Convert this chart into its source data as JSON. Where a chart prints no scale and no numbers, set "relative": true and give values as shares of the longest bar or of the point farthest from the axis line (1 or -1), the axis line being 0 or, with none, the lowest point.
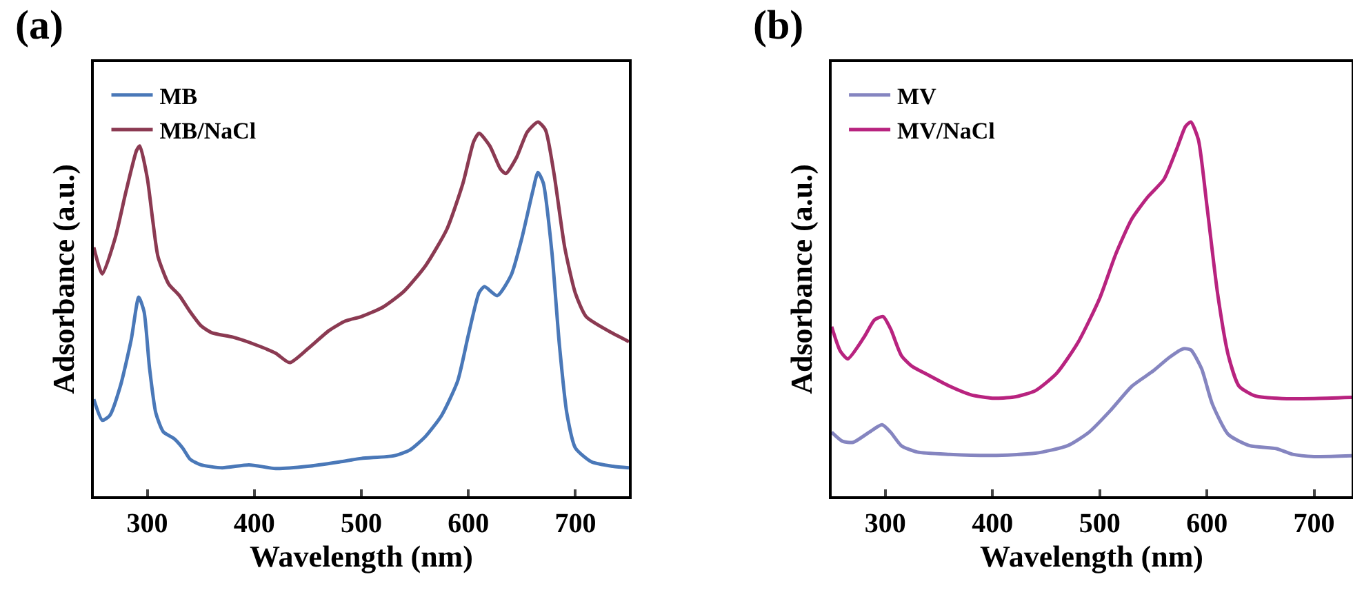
{
  "chart_data": [
    {
      "type": "line",
      "title": "(a)",
      "xlabel": "Wavelength (nm)",
      "ylabel": "Adsorbance (a.u.)",
      "relative": true,
      "xlim": [
        250,
        750
      ],
      "xticks": [
        300,
        400,
        500,
        600,
        700
      ],
      "legend": "top left",
      "line_style": "solid",
      "series": [
        {
          "name": "MB",
          "color": "#4a78b8",
          "x": [
            250,
            258,
            265,
            275,
            285,
            292,
            297,
            302,
            308,
            315,
            325,
            333,
            340,
            350,
            370,
            395,
            420,
            450,
            480,
            500,
            530,
            545,
            560,
            575,
            590,
            600,
            610,
            615,
            627,
            640,
            650,
            660,
            665,
            670,
            678,
            685,
            692,
            700,
            715,
            735,
            750
          ],
          "values": [
            0.259,
            0.203,
            0.216,
            0.296,
            0.419,
            0.532,
            0.493,
            0.345,
            0.222,
            0.172,
            0.154,
            0.129,
            0.099,
            0.084,
            0.076,
            0.084,
            0.074,
            0.08,
            0.092,
            0.101,
            0.108,
            0.123,
            0.16,
            0.216,
            0.308,
            0.431,
            0.544,
            0.56,
            0.536,
            0.591,
            0.69,
            0.813,
            0.865,
            0.837,
            0.653,
            0.406,
            0.222,
            0.129,
            0.092,
            0.08,
            0.076
          ]
        },
        {
          "name": "MB/NaCl",
          "color": "#8b3a52",
          "x": [
            250,
            258,
            270,
            280,
            290,
            293,
            300,
            305,
            310,
            320,
            330,
            340,
            350,
            360,
            380,
            400,
            420,
            433,
            450,
            470,
            485,
            500,
            520,
            540,
            560,
            580,
            595,
            605,
            610,
            620,
            630,
            635,
            645,
            655,
            665,
            672,
            680,
            690,
            700,
            710,
            730,
            750
          ],
          "values": [
            0.665,
            0.594,
            0.69,
            0.813,
            0.924,
            0.936,
            0.85,
            0.739,
            0.64,
            0.567,
            0.536,
            0.493,
            0.456,
            0.437,
            0.425,
            0.406,
            0.382,
            0.357,
            0.394,
            0.443,
            0.468,
            0.48,
            0.505,
            0.548,
            0.616,
            0.714,
            0.837,
            0.948,
            0.97,
            0.936,
            0.874,
            0.862,
            0.905,
            0.973,
            1.0,
            0.979,
            0.862,
            0.665,
            0.542,
            0.48,
            0.443,
            0.413
          ]
        }
      ]
    },
    {
      "type": "line",
      "title": "(b)",
      "xlabel": "Wavelength (nm)",
      "ylabel": "Adsorbance (a.u.)",
      "relative": true,
      "xlim": [
        250,
        735
      ],
      "xticks": [
        300,
        400,
        500,
        600,
        700
      ],
      "legend": "top left",
      "line_style": "solid",
      "series": [
        {
          "name": "MV",
          "color": "#8585c0",
          "x": [
            250,
            260,
            270,
            285,
            297,
            305,
            315,
            330,
            360,
            400,
            440,
            470,
            490,
            510,
            530,
            550,
            565,
            578,
            585,
            595,
            605,
            620,
            640,
            665,
            680,
            700,
            735
          ],
          "values": [
            0.171,
            0.147,
            0.144,
            0.171,
            0.191,
            0.171,
            0.135,
            0.118,
            0.112,
            0.109,
            0.115,
            0.135,
            0.171,
            0.229,
            0.294,
            0.335,
            0.371,
            0.394,
            0.391,
            0.341,
            0.247,
            0.165,
            0.135,
            0.127,
            0.112,
            0.106,
            0.108
          ]
        },
        {
          "name": "MV/NaCl",
          "color": "#b8237f",
          "x": [
            250,
            258,
            265,
            280,
            290,
            298,
            305,
            315,
            325,
            340,
            360,
            380,
            400,
            420,
            440,
            460,
            480,
            500,
            515,
            530,
            545,
            560,
            572,
            580,
            585,
            592,
            600,
            610,
            620,
            630,
            645,
            670,
            700,
            735
          ],
          "values": [
            0.453,
            0.388,
            0.367,
            0.424,
            0.471,
            0.48,
            0.447,
            0.376,
            0.347,
            0.324,
            0.294,
            0.271,
            0.262,
            0.265,
            0.282,
            0.329,
            0.412,
            0.529,
            0.647,
            0.741,
            0.8,
            0.847,
            0.929,
            0.988,
            1.0,
            0.953,
            0.776,
            0.541,
            0.376,
            0.294,
            0.268,
            0.261,
            0.261,
            0.264
          ]
        }
      ]
    }
  ]
}
